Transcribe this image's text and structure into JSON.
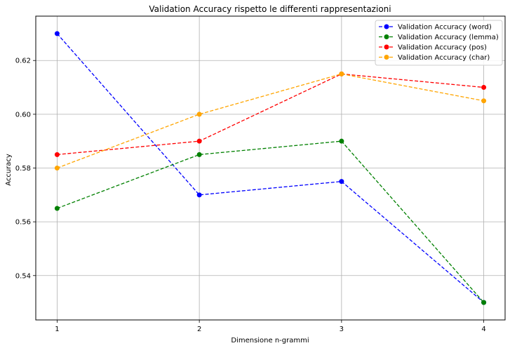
{
  "chart_data": {
    "type": "line",
    "title": "Validation Accuracy rispetto le differenti rappresentazioni",
    "xlabel": "Dimensione n-grammi",
    "ylabel": "Accuracy",
    "x": [
      1,
      2,
      3,
      4
    ],
    "x_ticks": [
      "1",
      "2",
      "3",
      "4"
    ],
    "xlim": [
      0.85,
      4.15
    ],
    "y_ticks": [
      0.54,
      0.56,
      0.58,
      0.6,
      0.62
    ],
    "y_tick_labels": [
      "0.54",
      "0.56",
      "0.58",
      "0.60",
      "0.62"
    ],
    "ylim": [
      0.5235,
      0.6365
    ],
    "grid": true,
    "legend_position": "top-right",
    "series": [
      {
        "name": "Validation Accuracy (word)",
        "color": "#0000ff",
        "line_style": "dashed",
        "marker": "circle",
        "values": [
          0.63,
          0.57,
          0.575,
          0.53
        ]
      },
      {
        "name": "Validation Accuracy (lemma)",
        "color": "#008000",
        "line_style": "dashed",
        "marker": "circle",
        "values": [
          0.565,
          0.585,
          0.59,
          0.53
        ]
      },
      {
        "name": "Validation Accuracy (pos)",
        "color": "#ff0000",
        "line_style": "dashed",
        "marker": "circle",
        "values": [
          0.585,
          0.59,
          0.615,
          0.61
        ]
      },
      {
        "name": "Validation Accuracy (char)",
        "color": "#ffa500",
        "line_style": "dashed",
        "marker": "circle",
        "values": [
          0.58,
          0.6,
          0.615,
          0.605
        ]
      }
    ]
  }
}
